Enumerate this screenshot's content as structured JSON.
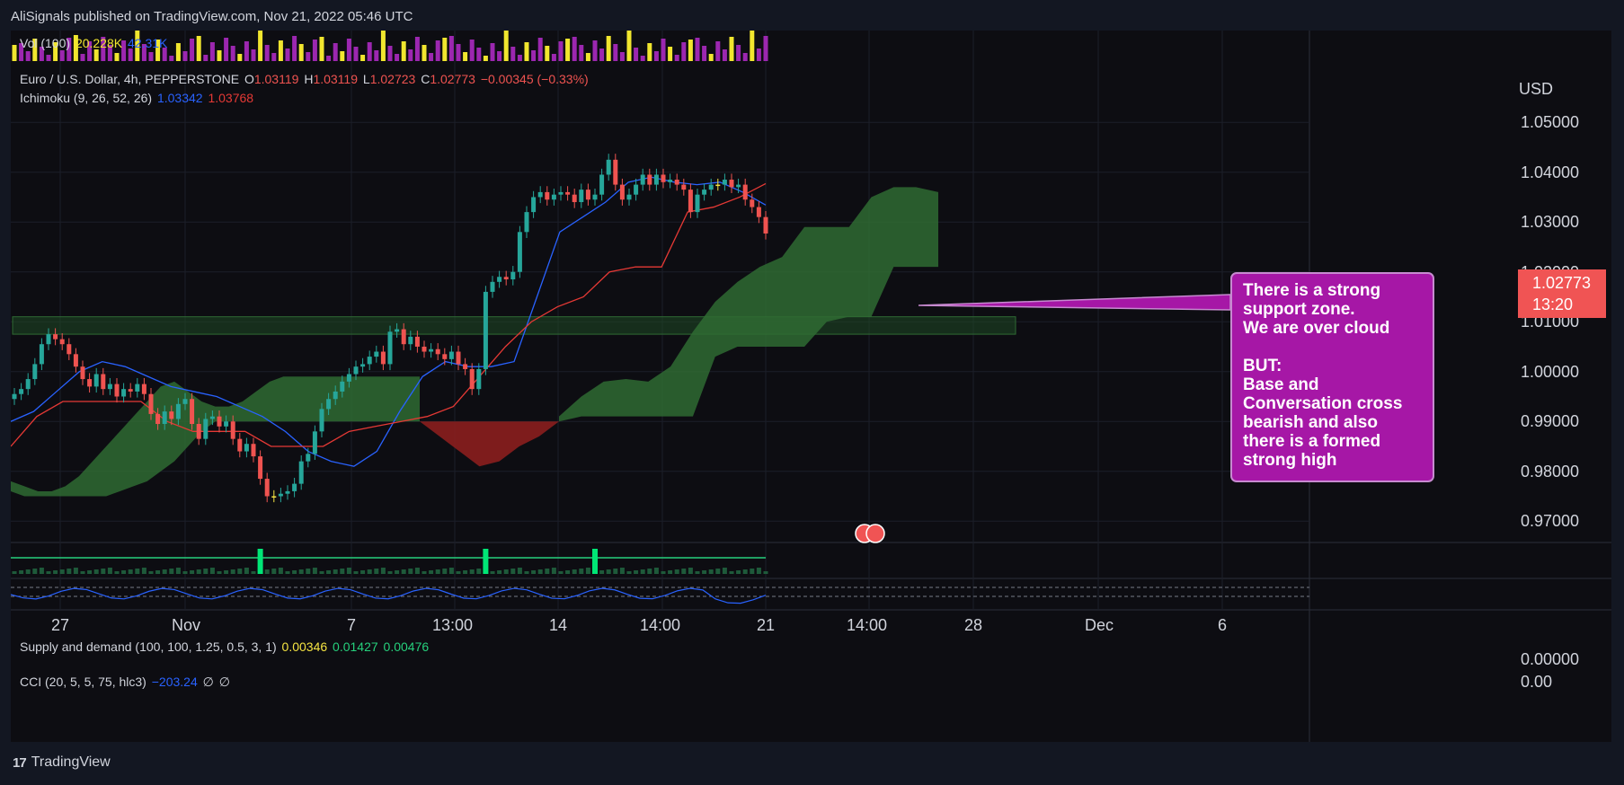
{
  "header": {
    "text": "AliSignals published on TradingView.com, Nov 21, 2022 05:46 UTC"
  },
  "footer": {
    "brand": "TradingView"
  },
  "indicators": {
    "vol": {
      "label": "Vol (100)",
      "v1": "20.228K",
      "v2": "42.31K",
      "c1": "#f1e62e",
      "c2": "#2962ff"
    },
    "main": {
      "title": "Euro / U.S. Dollar, 4h, PEPPERSTONE",
      "o_label": "O",
      "o": "1.03119",
      "h_label": "H",
      "h": "1.03119",
      "l_label": "L",
      "l": "1.02723",
      "c_label": "C",
      "c": "1.02773",
      "change": "−0.00345 (−0.33%)"
    },
    "ichimoku": {
      "label": "Ichimoku (9, 26, 52, 26)",
      "v1": "1.03342",
      "v2": "1.03768"
    },
    "supply": {
      "label": "Supply and demand (100, 100, 1.25, 0.5, 3, 1)",
      "v1": "0.00346",
      "v2": "0.01427",
      "v3": "0.00476"
    },
    "cci": {
      "label": "CCI (20, 5, 5, 75, hlc3)",
      "v1": "−203.24",
      "v2": "∅",
      "v3": "∅"
    }
  },
  "price_axis": {
    "currency": "USD",
    "ticks": [
      "1.05000",
      "1.04000",
      "1.03000",
      "1.02000",
      "1.01000",
      "1.00000",
      "0.99000",
      "0.98000",
      "0.97000"
    ],
    "current_price": "1.02773",
    "countdown": "13:20"
  },
  "supply_axis": {
    "tick": "0.00000"
  },
  "cci_axis": {
    "tick": "0.00"
  },
  "time_axis": {
    "ticks": [
      "27",
      "Nov",
      "7",
      "13:00",
      "14",
      "14:00",
      "21",
      "14:00",
      "28",
      "Dec",
      "6"
    ]
  },
  "annotation": {
    "text": "There is a strong\nsupport zone.\nWe are over cloud\n\nBUT:\nBase and\nConversation cross\nbearish and also\nthere is a  formed\nstrong high"
  },
  "colors": {
    "up": "#26a69a",
    "down": "#ef5350",
    "neutral": "#f5e442",
    "tenkan": "#2962ff",
    "kijun": "#e53935",
    "cloud_bull": "#2f6b33",
    "cloud_bear": "#8b1e1e",
    "volume_purple": "#9c27b0",
    "volume_yellow": "#f1e62e",
    "background": "#0d0d12",
    "page": "#131722"
  },
  "chart_data": {
    "type": "candlestick",
    "symbol": "Euro / U.S. Dollar, 4h, PEPPERSTONE",
    "ylabel": "USD",
    "ylim": [
      0.965,
      1.054
    ],
    "x_ticks": [
      "27",
      "Nov",
      "7",
      "13:00",
      "14",
      "14:00",
      "21",
      "14:00",
      "28",
      "Dec",
      "6"
    ],
    "closes": [
      0.9955,
      0.9965,
      0.9985,
      1.0015,
      1.0055,
      1.0075,
      1.0065,
      1.0055,
      1.0035,
      1.001,
      0.9985,
      0.997,
      0.9995,
      0.9965,
      0.9975,
      0.995,
      0.9965,
      0.996,
      0.9975,
      0.9955,
      0.9915,
      0.9895,
      0.992,
      0.9905,
      0.9935,
      0.9945,
      0.9895,
      0.9865,
      0.9905,
      0.991,
      0.989,
      0.99,
      0.9865,
      0.984,
      0.9855,
      0.983,
      0.9785,
      0.975,
      0.975,
      0.9755,
      0.976,
      0.9775,
      0.982,
      0.9835,
      0.988,
      0.9925,
      0.9945,
      0.996,
      0.998,
      0.9995,
      1.001,
      1.0015,
      1.003,
      1.004,
      1.0015,
      1.008,
      1.0085,
      1.0055,
      1.007,
      1.005,
      1.004,
      1.0045,
      1.0035,
      1.0025,
      1.004,
      1.0015,
      1.0005,
      0.9965,
      1.0005,
      1.016,
      1.018,
      1.019,
      1.0185,
      1.02,
      1.028,
      1.032,
      1.035,
      1.036,
      1.0345,
      1.0355,
      1.036,
      1.0355,
      1.034,
      1.0365,
      1.0345,
      1.0355,
      1.0395,
      1.0425,
      1.0375,
      1.0345,
      1.0355,
      1.0375,
      1.0395,
      1.0375,
      1.0395,
      1.038,
      1.0385,
      1.0375,
      1.0365,
      1.032,
      1.0355,
      1.0365,
      1.0375,
      1.0375,
      1.0385,
      1.037,
      1.0375,
      1.0345,
      1.033,
      1.031,
      1.0277
    ],
    "tenkan": [
      0.99,
      0.992,
      0.996,
      1.0,
      1.002,
      1.001,
      0.999,
      0.997,
      0.996,
      0.995,
      0.993,
      0.991,
      0.988,
      0.984,
      0.982,
      0.981,
      0.984,
      0.992,
      0.999,
      1.002,
      1.001,
      1.001,
      1.002,
      1.015,
      1.028,
      1.031,
      1.034,
      1.038,
      1.039,
      1.038,
      1.0375,
      1.038,
      1.036,
      1.0334
    ],
    "kijun": [
      0.985,
      0.991,
      0.994,
      0.994,
      0.994,
      0.994,
      0.99,
      0.988,
      0.988,
      0.988,
      0.985,
      0.985,
      0.985,
      0.988,
      0.989,
      0.99,
      0.991,
      0.993,
      0.999,
      1.005,
      1.01,
      1.013,
      1.015,
      1.02,
      1.021,
      1.021,
      1.032,
      1.033,
      1.035,
      1.0377
    ],
    "highlight_zone": [
      1.0075,
      1.011
    ],
    "volume": {
      "colors": [
        "purple",
        "yellow"
      ],
      "note": "volume bars colored purple (bullish) and yellow (bearish)"
    },
    "annotation": "There is a strong support zone. We are over cloud BUT: Base and Conversation cross bearish and also there is a formed strong high",
    "grid": true,
    "legend": "top-left"
  }
}
